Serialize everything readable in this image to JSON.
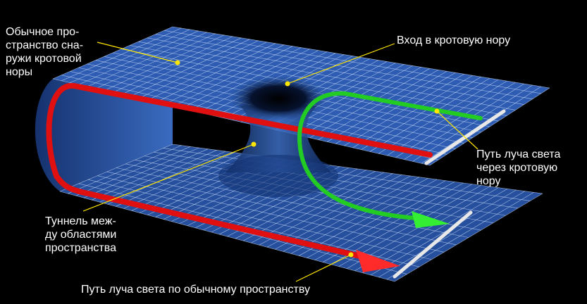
{
  "labels": {
    "outside_space": "Обычное про-\nстранство сна-\nружи кротовой\nноры",
    "entrance": "Вход в кротовую нору",
    "light_through": "Путь луча света\nчерез кротовую\nнору",
    "tunnel": "Туннель меж-\nду областями\nпространства",
    "light_normal": "Путь луча света по обычному пространству"
  },
  "colors": {
    "background": "#000000",
    "grid_line": "#d8e8ff",
    "sheet_fill": "#2b5bb0",
    "normal_path": "#e01010",
    "wormhole_path": "#22cc22",
    "leader_line": "#ffe600",
    "end_marker": "#e8e8e8"
  }
}
